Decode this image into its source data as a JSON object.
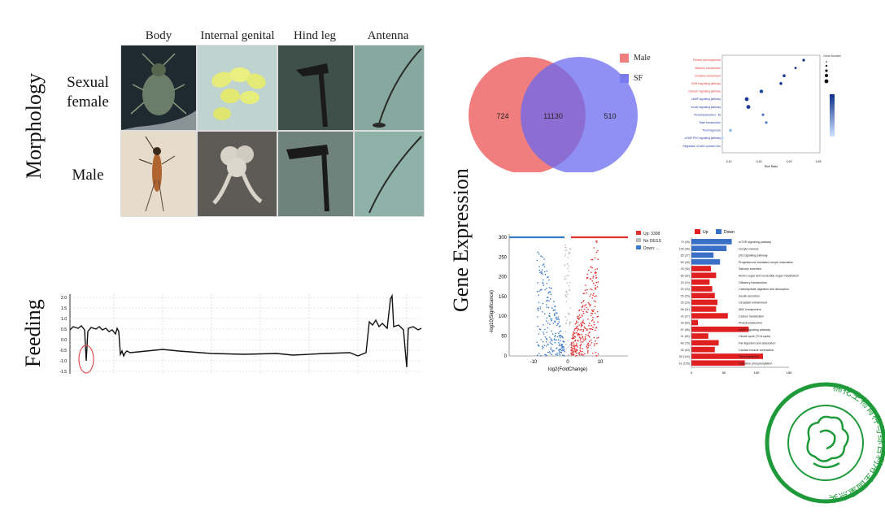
{
  "sections": {
    "morphology": "Morphology",
    "feeding": "Feeding",
    "gene_expression": "Gene Expression"
  },
  "morphology": {
    "columns": [
      "Body",
      "Internal genital",
      "Hind leg",
      "Antenna"
    ],
    "rows": [
      {
        "label_line1": "Sexual",
        "label_line2": "female"
      },
      {
        "label_line1": "Male",
        "label_line2": ""
      }
    ]
  },
  "feeding": {
    "yticks": [
      "2.0",
      "1.5",
      "1.0",
      "0.5",
      "0.0",
      "-0.5",
      "-1.0",
      "-1.5"
    ]
  },
  "venn": {
    "left_only": "724",
    "overlap": "11130",
    "right_only": "510",
    "legend": [
      {
        "label": "Male",
        "color": "#f08080"
      },
      {
        "label": "SF",
        "color": "#7b7bf0"
      }
    ]
  },
  "dotplot": {
    "categories": [
      "Phorbol carcinogenesis",
      "Olfactory transduction",
      "Circadian entrainment",
      "GnRH signaling pathway",
      "Oxytocin signaling pathway",
      "cAMP signaling pathway",
      "Insulin signaling pathway",
      "Phototransduction - fly",
      "Taste transduction",
      "Thermogenesis",
      "cGMP-PKG signaling pathway",
      "Regulation of actin cytoskeleton"
    ],
    "legend_title": "Gene Number",
    "xlabel": "Rich Ratio",
    "xticks": [
      "0.10",
      "0.15",
      "0.20",
      "0.25"
    ]
  },
  "volcano": {
    "xlabel": "log2(FoldChange)",
    "ylabel": "-log10(Significance)",
    "yticks": [
      "300",
      "250",
      "200",
      "150",
      "100",
      "50",
      "0"
    ],
    "xticks": [
      "-10",
      "0",
      "10"
    ],
    "legend": [
      {
        "label": "Up: 3308",
        "color": "#e03030"
      },
      {
        "label": "No DEGS",
        "color": "#bbbbbb"
      },
      {
        "label": "Down: ...",
        "color": "#3a78c8"
      }
    ]
  },
  "barchart": {
    "legend": [
      {
        "label": "Up",
        "color": "#e02020"
      },
      {
        "label": "Down",
        "color": "#3a6fc8"
      }
    ],
    "xticks": [
      "0",
      "50",
      "100",
      "150"
    ],
    "items": [
      {
        "count": "79 (25)",
        "label": "mTOR signaling pathway",
        "value": 62,
        "dir": "down"
      },
      {
        "count": "105 (26)",
        "label": "Oocyte meiosis",
        "value": 54,
        "dir": "down"
      },
      {
        "count": "85 (27)",
        "label": "p53 signaling pathway",
        "value": 34,
        "dir": "down"
      },
      {
        "count": "80 (28)",
        "label": "Progesterone-mediated oocyte maturation",
        "value": 44,
        "dir": "down"
      },
      {
        "count": "25 (30)",
        "label": "Salivary secretion",
        "value": 30,
        "dir": "up"
      },
      {
        "count": "66 (30)",
        "label": "Amino sugar and nucleotide sugar metabolism",
        "value": 38,
        "dir": "up"
      },
      {
        "count": "15 (10)",
        "label": "Olfactory transduction",
        "value": 28,
        "dir": "up"
      },
      {
        "count": "25 (15)",
        "label": "Carbohydrate digestion and absorption",
        "value": 32,
        "dir": "up"
      },
      {
        "count": "25 (20)",
        "label": "Insulin secretion",
        "value": 36,
        "dir": "up"
      },
      {
        "count": "35 (20)",
        "label": "Circadian entrainment",
        "value": 40,
        "dir": "up"
      },
      {
        "count": "56 (41)",
        "label": "ABC transporters",
        "value": 38,
        "dir": "up"
      },
      {
        "count": "34 (27)",
        "label": "Carbon metabolism",
        "value": 56,
        "dir": "up"
      },
      {
        "count": "28 (60)",
        "label": "Phototransduction",
        "value": 10,
        "dir": "up"
      },
      {
        "count": "87 (66)",
        "label": "cAMP signaling pathway",
        "value": 88,
        "dir": "up"
      },
      {
        "count": "31 (60)",
        "label": "Citrate cycle (TCA cycle)",
        "value": 26,
        "dir": "up"
      },
      {
        "count": "46 (76)",
        "label": "Fat digestion and absorption",
        "value": 42,
        "dir": "up"
      },
      {
        "count": "35 (63)",
        "label": "Cardiac muscle contraction",
        "value": 36,
        "dir": "up"
      },
      {
        "count": "55 (116)",
        "label": "Thermogenesis",
        "value": 110,
        "dir": "up"
      },
      {
        "count": "61 (105)",
        "label": "Oxidative phosphorylation",
        "value": 82,
        "dir": "up"
      }
    ]
  },
  "logo": {
    "ring_text": "棉花生物育种与综合利用全国重点实验室",
    "color": "#1f9a3a"
  }
}
